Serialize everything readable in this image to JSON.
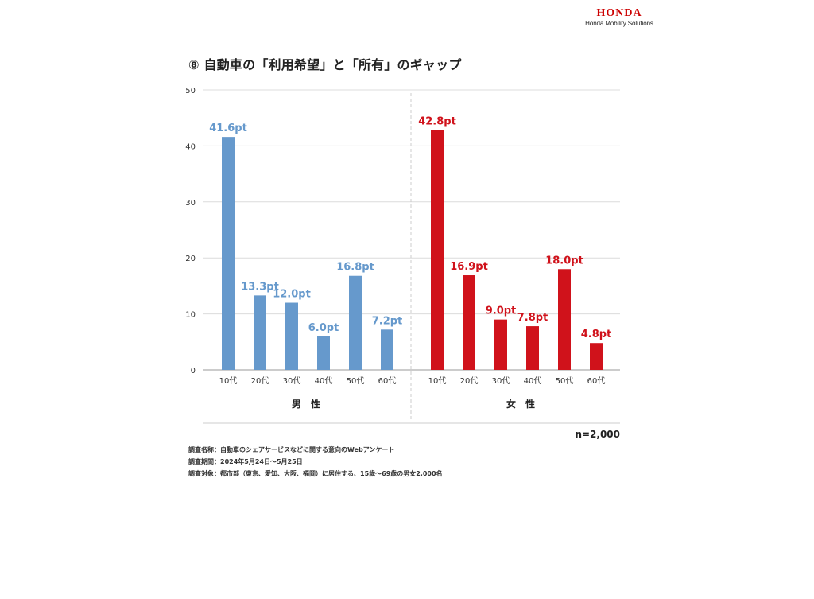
{
  "brand": {
    "logo": "HONDA",
    "subtitle": "Honda Mobility Solutions"
  },
  "title": "⑧ 自動車の「利用希望」と「所有」のギャップ",
  "chart_data": {
    "type": "bar",
    "ylim": [
      0,
      50
    ],
    "yticks": [
      "0",
      "10",
      "20",
      "30",
      "40",
      "50"
    ],
    "grid": true,
    "groups": [
      {
        "name": "男　性",
        "color": "#6699cc",
        "categories": [
          "10代",
          "20代",
          "30代",
          "40代",
          "50代",
          "60代"
        ],
        "values": [
          41.6,
          13.3,
          12.0,
          6.0,
          16.8,
          7.2
        ],
        "data_labels": [
          "41.6pt",
          "13.3pt",
          "12.0pt",
          "6.0pt",
          "16.8pt",
          "7.2pt"
        ]
      },
      {
        "name": "女　性",
        "color": "#d0121b",
        "categories": [
          "10代",
          "20代",
          "30代",
          "40代",
          "50代",
          "60代"
        ],
        "values": [
          42.8,
          16.9,
          9.0,
          7.8,
          18.0,
          4.8
        ],
        "data_labels": [
          "42.8pt",
          "16.9pt",
          "9.0pt",
          "7.8pt",
          "18.0pt",
          "4.8pt"
        ]
      }
    ]
  },
  "sample_size": "n=2,000",
  "notes": [
    "調査名称：自動車のシェアサービスなどに関する意向のWebアンケート",
    "調査期間：2024年5月24日〜5月25日",
    "調査対象：都市部（東京、愛知、大阪、福岡）に居住する、15歳〜69歳の男女2,000名"
  ]
}
